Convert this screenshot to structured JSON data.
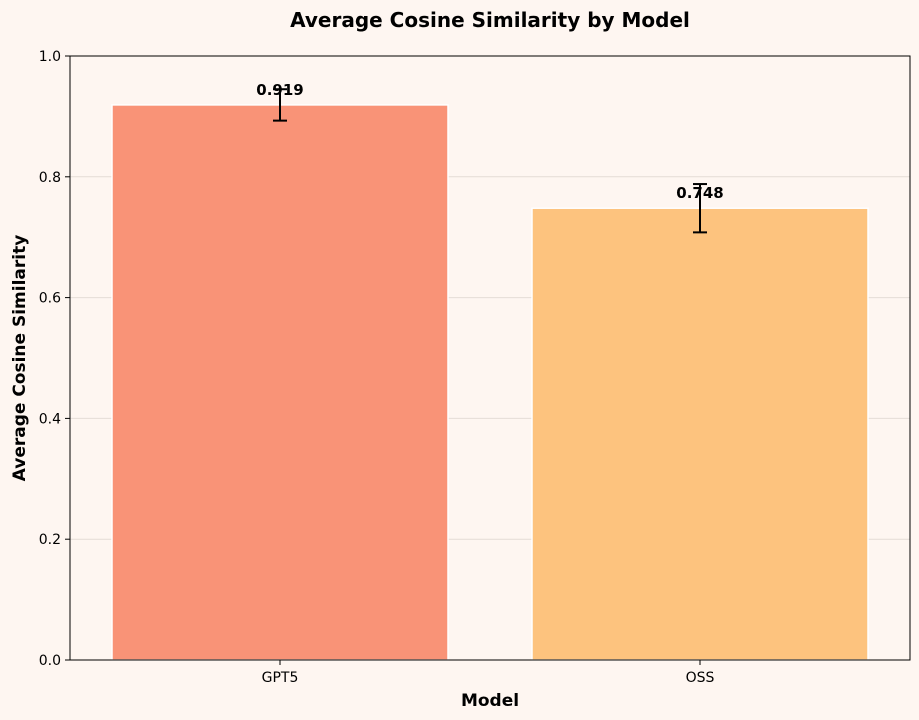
{
  "chart_data": {
    "type": "bar",
    "title": "Average Cosine Similarity by Model",
    "xlabel": "Model",
    "ylabel": "Average Cosine Similarity",
    "categories": [
      "GPT5",
      "OSS"
    ],
    "values": [
      0.919,
      0.748
    ],
    "value_labels": [
      "0.919",
      "0.748"
    ],
    "error_low": [
      0.893,
      0.708
    ],
    "error_high": [
      0.945,
      0.788
    ],
    "colors": [
      "#F99377",
      "#FDC37E"
    ],
    "ylim": [
      0,
      1.0
    ],
    "yticks": [
      0.0,
      0.2,
      0.4,
      0.6,
      0.8,
      1.0
    ],
    "ytick_labels": [
      "0.0",
      "0.2",
      "0.4",
      "0.6",
      "0.8",
      "1.0"
    ],
    "grid": true,
    "background": "#FEF6F1"
  }
}
